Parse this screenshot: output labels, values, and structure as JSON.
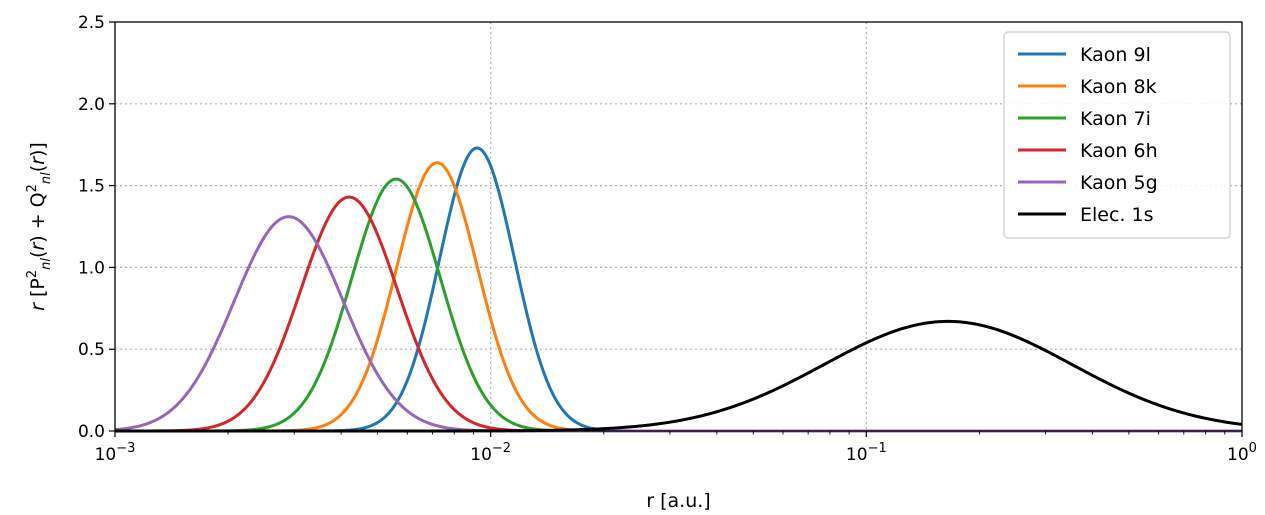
{
  "chart_data": {
    "type": "line",
    "xscale": "log",
    "xlim": [
      0.001,
      1
    ],
    "ylim": [
      0,
      2.5
    ],
    "xlabel": "r [a.u.]",
    "ylabel_parts": [
      "r",
      "[P",
      "2",
      "nl",
      "(",
      "r",
      ") + Q",
      "2",
      "nl",
      "(",
      "r",
      ")]"
    ],
    "x_ticks": [
      {
        "value": 0.001,
        "base": "10",
        "exp": "−3"
      },
      {
        "value": 0.01,
        "base": "10",
        "exp": "−2"
      },
      {
        "value": 0.1,
        "base": "10",
        "exp": "−1"
      },
      {
        "value": 1,
        "base": "10",
        "exp": "0"
      }
    ],
    "y_ticks": [
      {
        "value": 0,
        "label": "0.0"
      },
      {
        "value": 0.5,
        "label": "0.5"
      },
      {
        "value": 1,
        "label": "1.0"
      },
      {
        "value": 1.5,
        "label": "1.5"
      },
      {
        "value": 2,
        "label": "2.0"
      },
      {
        "value": 2.5,
        "label": "2.5"
      }
    ],
    "grid": true,
    "legend_position": "top-right",
    "series": [
      {
        "name": "Kaon 9l",
        "color": "#1f77b4",
        "peak_r": 0.0092,
        "peak_value": 1.73,
        "width_dex": 0.1
      },
      {
        "name": "Kaon 8k",
        "color": "#ff7f0e",
        "peak_r": 0.0072,
        "peak_value": 1.64,
        "width_dex": 0.108
      },
      {
        "name": "Kaon 7i",
        "color": "#2ca02c",
        "peak_r": 0.0056,
        "peak_value": 1.54,
        "width_dex": 0.118
      },
      {
        "name": "Kaon 6h",
        "color": "#d62728",
        "peak_r": 0.0042,
        "peak_value": 1.43,
        "width_dex": 0.128
      },
      {
        "name": "Kaon 5g",
        "color": "#9467bd",
        "peak_r": 0.0029,
        "peak_value": 1.31,
        "width_dex": 0.145
      },
      {
        "name": "Elec. 1s",
        "color": "#000000",
        "peak_r": 0.165,
        "peak_value": 0.67,
        "width_dex": 0.33
      }
    ]
  }
}
